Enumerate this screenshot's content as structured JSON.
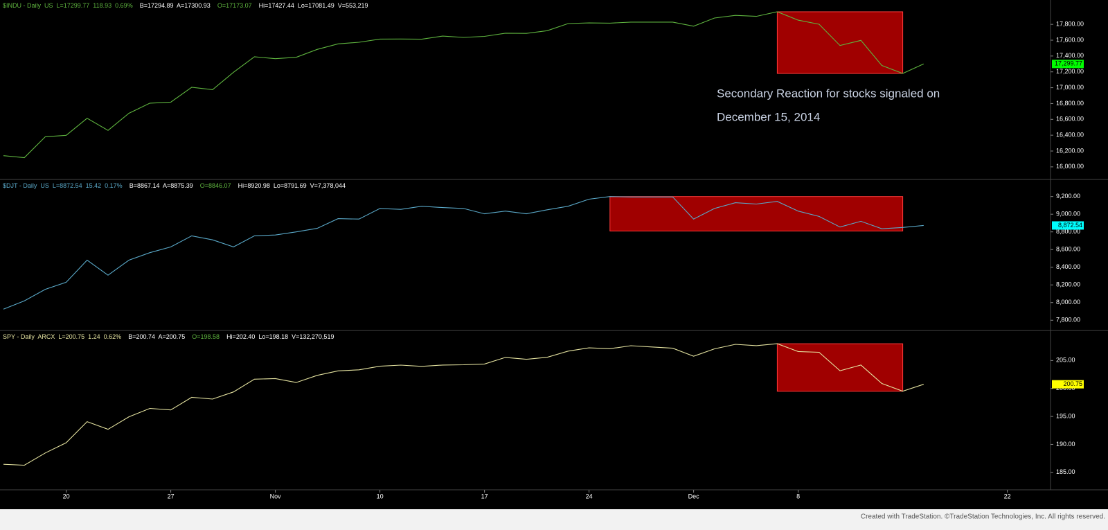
{
  "chart_data": [
    {
      "type": "line",
      "header": [
        {
          "text": "$INDU - Daily  US  L=17299.77  118.93  0.69%",
          "color": "#5fb53f"
        },
        {
          "text": "B=17294.89  A=17300.93",
          "color": "#ffffff"
        },
        {
          "text": "O=17173.07",
          "color": "#5fb53f"
        },
        {
          "text": "Hi=17427.44  Lo=17081.49  V=553,219",
          "color": "#ffffff"
        }
      ],
      "color": "#5fb53f",
      "values": [
        16141,
        16117,
        16380,
        16399,
        16614,
        16461,
        16677,
        16805,
        16818,
        17005,
        16975,
        17195,
        17391,
        17366,
        17384,
        17484,
        17554,
        17574,
        17614,
        17615,
        17612,
        17652,
        17635,
        17648,
        17688,
        17686,
        17720,
        17810,
        17818,
        17815,
        17828,
        17828,
        17828,
        17777,
        17880,
        17913,
        17901,
        17959,
        17853,
        17801,
        17533,
        17597,
        17281,
        17180,
        17299.77,
        null,
        null,
        null,
        null,
        null
      ],
      "ylim": [
        15850,
        18090
      ],
      "yticks": [
        {
          "value": 16000,
          "label": "16,000.00"
        },
        {
          "value": 16200,
          "label": "16,200.00"
        },
        {
          "value": 16400,
          "label": "16,400.00"
        },
        {
          "value": 16600,
          "label": "16,600.00"
        },
        {
          "value": 16800,
          "label": "16,800.00"
        },
        {
          "value": 17000,
          "label": "17,000.00"
        },
        {
          "value": 17200,
          "label": "17,200.00"
        },
        {
          "value": 17400,
          "label": "17,400.00"
        },
        {
          "value": 17600,
          "label": "17,600.00"
        },
        {
          "value": 17800,
          "label": "17,800.00"
        }
      ],
      "last_price": {
        "value": 17299.77,
        "label": "17,299.77",
        "color": "#00ff00"
      },
      "highlight": {
        "xlim": [
          37,
          43
        ],
        "ylim": [
          17180,
          17959
        ],
        "color": "#a00000"
      },
      "annotations": [
        "Secondary Reaction for stocks signaled on",
        "December 15, 2014"
      ]
    },
    {
      "type": "line",
      "header": [
        {
          "text": "$DJT - Daily  US  L=8872.54  15.42  0.17%",
          "color": "#5aa9c9"
        },
        {
          "text": "B=8867.14  A=8875.39",
          "color": "#ffffff"
        },
        {
          "text": "O=8846.07",
          "color": "#5fb53f"
        },
        {
          "text": "Hi=8920.98  Lo=8791.69  V=7,378,044",
          "color": "#ffffff"
        }
      ],
      "color": "#5aa9c9",
      "values": [
        7925,
        8020,
        8150,
        8230,
        8480,
        8310,
        8480,
        8565,
        8630,
        8755,
        8710,
        8630,
        8755,
        8765,
        8800,
        8840,
        8950,
        8945,
        9065,
        9055,
        9090,
        9075,
        9065,
        9005,
        9035,
        9005,
        9050,
        9090,
        9170,
        9200,
        9195,
        9195,
        9195,
        8945,
        9065,
        9130,
        9115,
        9145,
        9035,
        8975,
        8855,
        8920,
        8835,
        8850,
        8872.54,
        null,
        null,
        null,
        null,
        null
      ],
      "ylim": [
        7700,
        9370
      ],
      "yticks": [
        {
          "value": 7800,
          "label": "7,800.00"
        },
        {
          "value": 8000,
          "label": "8,000.00"
        },
        {
          "value": 8200,
          "label": "8,200.00"
        },
        {
          "value": 8400,
          "label": "8,400.00"
        },
        {
          "value": 8600,
          "label": "8,600.00"
        },
        {
          "value": 8800,
          "label": "8,800.00"
        },
        {
          "value": 9000,
          "label": "9,000.00"
        },
        {
          "value": 9200,
          "label": "9,200.00"
        }
      ],
      "last_price": {
        "value": 8872.54,
        "label": "8,872.54",
        "color": "#00ffff"
      },
      "highlight": {
        "xlim": [
          29,
          43
        ],
        "ylim": [
          8810,
          9200
        ],
        "color": "#a00000"
      }
    },
    {
      "type": "line",
      "header": [
        {
          "text": "SPY - Daily  ARCX  L=200.75  1.24  0.62%",
          "color": "#e5e3a0"
        },
        {
          "text": "B=200.74  A=200.75",
          "color": "#ffffff"
        },
        {
          "text": "O=198.58",
          "color": "#5fb53f"
        },
        {
          "text": "Hi=202.40  Lo=198.18  V=132,270,519",
          "color": "#ffffff"
        }
      ],
      "color": "#e5e3a0",
      "values": [
        186.43,
        186.27,
        188.47,
        190.3,
        194.07,
        192.69,
        194.93,
        196.43,
        196.16,
        198.41,
        198.11,
        199.38,
        201.66,
        201.77,
        201.07,
        202.34,
        203.15,
        203.34,
        203.98,
        204.18,
        203.96,
        204.19,
        204.24,
        204.37,
        205.55,
        205.22,
        205.58,
        206.68,
        207.26,
        207.11,
        207.64,
        207.42,
        207.2,
        205.76,
        207.09,
        207.89,
        207.66,
        208.0,
        206.61,
        206.47,
        203.16,
        204.19,
        200.89,
        199.51,
        200.75,
        null,
        null,
        null,
        null,
        null
      ],
      "ylim": [
        182,
        210
      ],
      "yticks": [
        {
          "value": 185,
          "label": "185.00"
        },
        {
          "value": 190,
          "label": "190.00"
        },
        {
          "value": 195,
          "label": "195.00"
        },
        {
          "value": 200,
          "label": "200.00"
        },
        {
          "value": 205,
          "label": "205.00"
        }
      ],
      "last_price": {
        "value": 200.75,
        "label": "200.75",
        "color": "#ffff00"
      },
      "highlight": {
        "xlim": [
          37,
          43
        ],
        "ylim": [
          199.5,
          208.0
        ],
        "color": "#a00000"
      },
      "categories": [
        null,
        null,
        null,
        "20",
        null,
        null,
        null,
        null,
        "27",
        null,
        null,
        null,
        null,
        "Nov",
        null,
        null,
        null,
        null,
        "10",
        null,
        null,
        null,
        null,
        "17",
        null,
        null,
        null,
        null,
        "24",
        null,
        null,
        null,
        null,
        "Dec",
        null,
        null,
        null,
        null,
        "8",
        null,
        null,
        null,
        null,
        null,
        null,
        null,
        null,
        null,
        "22",
        null
      ]
    }
  ],
  "footer": "Created with TradeStation. ©TradeStation Technologies, Inc. All rights reserved."
}
